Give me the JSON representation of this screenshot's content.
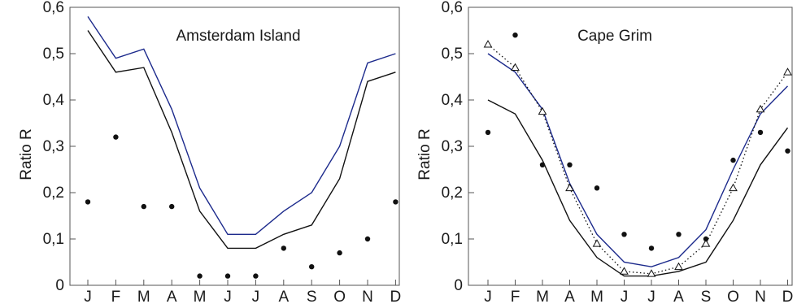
{
  "chart_data": [
    {
      "type": "line",
      "title": "Amsterdam Island",
      "xlabel": "",
      "ylabel": "Ratio R",
      "categories": [
        "J",
        "F",
        "M",
        "A",
        "M",
        "J",
        "J",
        "A",
        "S",
        "O",
        "N",
        "D"
      ],
      "ylim": [
        0,
        0.6
      ],
      "yticks": [
        "0",
        "0,1",
        "0,2",
        "0,3",
        "0,4",
        "0,5",
        "0,6"
      ],
      "grid": false,
      "series": [
        {
          "kind": "line",
          "color": "#1c2a8c",
          "dash": "solid",
          "marker": "none",
          "values": [
            0.58,
            0.49,
            0.51,
            0.38,
            0.21,
            0.11,
            0.11,
            0.16,
            0.2,
            0.3,
            0.48,
            0.5
          ]
        },
        {
          "kind": "line",
          "color": "#111111",
          "dash": "solid",
          "marker": "none",
          "values": [
            0.55,
            0.46,
            0.47,
            0.33,
            0.16,
            0.08,
            0.08,
            0.11,
            0.13,
            0.23,
            0.44,
            0.46
          ]
        },
        {
          "kind": "points",
          "color": "#111111",
          "marker": "dot",
          "values": [
            0.18,
            0.32,
            0.17,
            0.17,
            0.02,
            0.02,
            0.02,
            0.08,
            0.04,
            0.07,
            0.1,
            0.18
          ]
        }
      ]
    },
    {
      "type": "line",
      "title": "Cape Grim",
      "xlabel": "",
      "ylabel": "Ratio R",
      "categories": [
        "J",
        "F",
        "M",
        "A",
        "M",
        "J",
        "J",
        "A",
        "S",
        "O",
        "N",
        "D"
      ],
      "ylim": [
        0,
        0.6
      ],
      "yticks": [
        "0",
        "0,1",
        "0,2",
        "0,3",
        "0,4",
        "0,5",
        "0,6"
      ],
      "grid": false,
      "series": [
        {
          "kind": "line",
          "color": "#1c2a8c",
          "dash": "solid",
          "marker": "none",
          "values": [
            0.5,
            0.46,
            0.38,
            0.22,
            0.11,
            0.05,
            0.04,
            0.06,
            0.12,
            0.25,
            0.37,
            0.43
          ]
        },
        {
          "kind": "line",
          "color": "#111111",
          "dash": "solid",
          "marker": "none",
          "values": [
            0.4,
            0.37,
            0.27,
            0.14,
            0.06,
            0.02,
            0.02,
            0.03,
            0.05,
            0.14,
            0.26,
            0.34
          ]
        },
        {
          "kind": "line",
          "color": "#111111",
          "dash": "dotted",
          "marker": "triangle",
          "values": [
            0.52,
            0.47,
            0.375,
            0.21,
            0.09,
            0.03,
            0.025,
            0.04,
            0.09,
            0.21,
            0.38,
            0.46
          ]
        },
        {
          "kind": "points",
          "color": "#111111",
          "marker": "dot",
          "values": [
            0.33,
            0.54,
            0.26,
            0.26,
            0.21,
            0.11,
            0.08,
            0.11,
            0.1,
            0.27,
            0.33,
            0.29
          ]
        }
      ]
    }
  ]
}
